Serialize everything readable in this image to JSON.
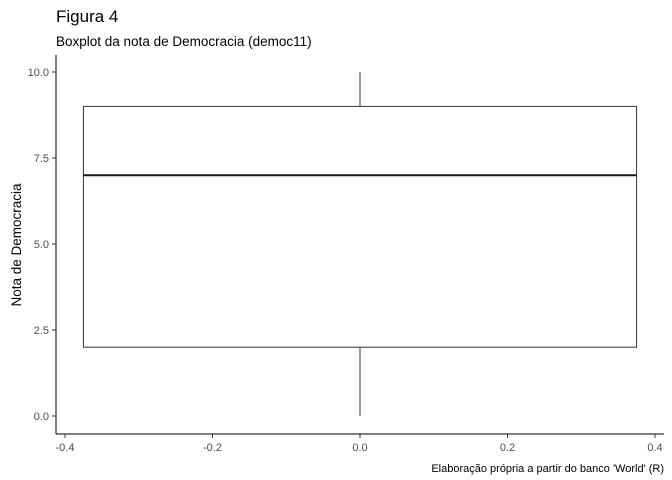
{
  "title": "Figura 4",
  "subtitle": "Boxplot da nota de Democracia (democ11)",
  "caption": "Elaboração própria a partir do banco 'World' (R)",
  "chart_data": {
    "type": "boxplot",
    "ylabel": "Nota de Democracia",
    "xlabel": "",
    "xlim": [
      -0.4,
      0.4
    ],
    "ylim": [
      0,
      10
    ],
    "x_ticks": [
      -0.4,
      -0.2,
      0.0,
      0.2,
      0.4
    ],
    "x_tick_labels": [
      "-0.4",
      "-0.2",
      "0.0",
      "0.2",
      "0.4"
    ],
    "y_ticks": [
      0,
      2.5,
      5,
      7.5,
      10
    ],
    "y_tick_labels": [
      "0.0",
      "2.5",
      "5.0",
      "7.5",
      "10.0"
    ],
    "box": {
      "x_center": 0.0,
      "x_left": -0.375,
      "x_right": 0.375,
      "min": 0,
      "q1": 2,
      "median": 7,
      "q3": 9,
      "max": 10
    },
    "grid": false
  }
}
